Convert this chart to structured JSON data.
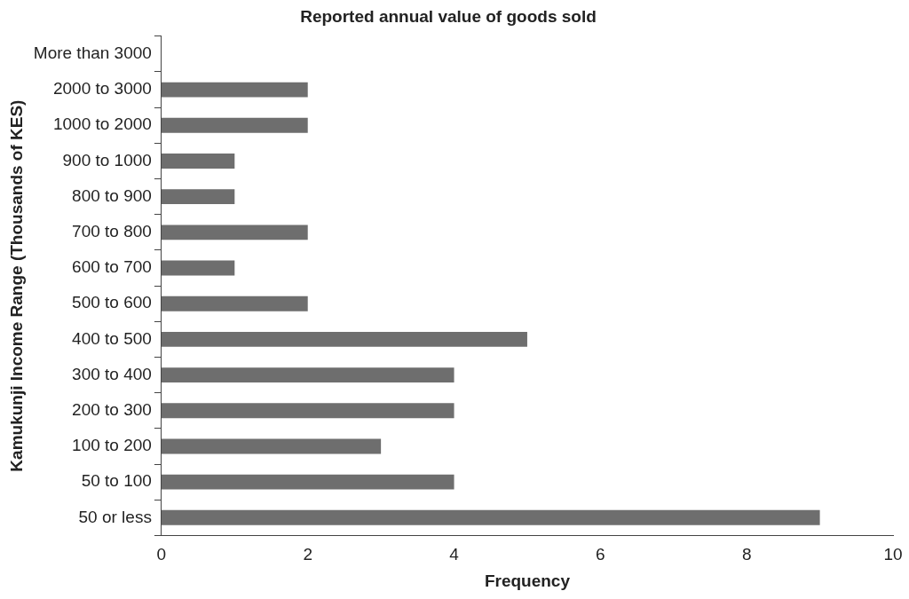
{
  "chart_data": {
    "type": "bar",
    "orientation": "horizontal",
    "title": "Reported annual value of goods sold",
    "xlabel": "Frequency",
    "ylabel": "Kamukunji Income Range (Thousands of KES)",
    "categories": [
      "More than 3000",
      "2000 to 3000",
      "1000 to 2000",
      "900 to 1000",
      "800 to 900",
      "700 to 800",
      "600 to 700",
      "500 to 600",
      "400 to 500",
      "300 to 400",
      "200 to 300",
      "100 to 200",
      "50 to 100",
      "50 or less"
    ],
    "values": [
      0,
      2,
      2,
      1,
      1,
      2,
      1,
      2,
      5,
      4,
      4,
      3,
      4,
      9
    ],
    "color": "#6e6e6e",
    "xlim": [
      0,
      10
    ],
    "xticks": [
      0,
      2,
      4,
      6,
      8,
      10
    ],
    "grid": false,
    "legend": false
  }
}
